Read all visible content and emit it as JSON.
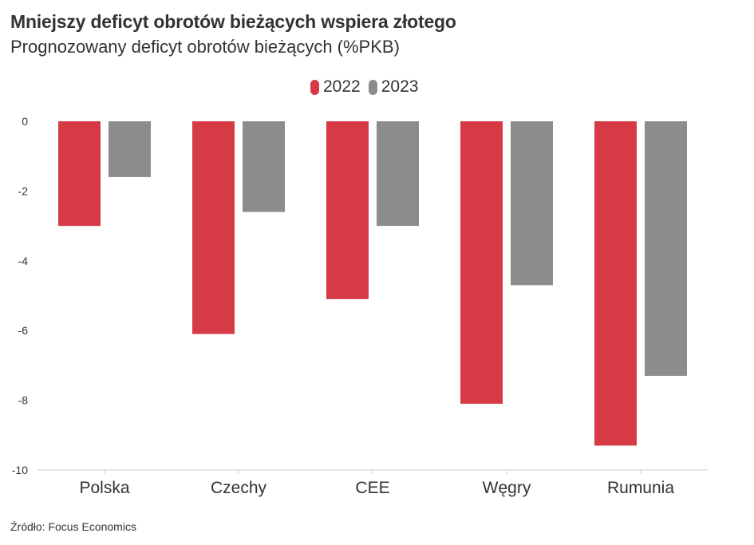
{
  "header": {
    "title": "Mniejszy deficyt obrotów bieżących wspiera złotego",
    "subtitle": "Prognozowany deficyt obrotów bieżących (%PKB)"
  },
  "footer": {
    "source": "Źródło: Focus Economics"
  },
  "colors": {
    "series_2022": "#d63a45",
    "series_2023": "#8c8c8c",
    "axis": "#cccccc"
  },
  "chart_data": {
    "type": "bar",
    "categories": [
      "Polska",
      "Czechy",
      "CEE",
      "Węgry",
      "Rumunia"
    ],
    "series": [
      {
        "name": "2022",
        "values": [
          -3.0,
          -6.1,
          -5.1,
          -8.1,
          -9.3
        ]
      },
      {
        "name": "2023",
        "values": [
          -1.6,
          -2.6,
          -3.0,
          -4.7,
          -7.3
        ]
      }
    ],
    "yticks": [
      "0",
      "-2",
      "-4",
      "-6",
      "-8",
      "-10"
    ],
    "ylim": [
      -10,
      0
    ],
    "grid": false,
    "legend_position": "top-center"
  }
}
